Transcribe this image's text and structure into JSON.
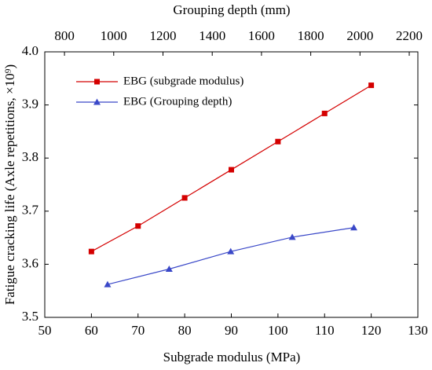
{
  "chart_data": {
    "type": "line",
    "xlabel": "Subgrade modulus (MPa)",
    "x2label": "Grouping depth (mm)",
    "ylabel": "Fatigue cracking life (Axle repetitions, ×10⁹)",
    "xlim": [
      50,
      130
    ],
    "xticks": [
      50,
      60,
      70,
      80,
      90,
      100,
      110,
      120,
      130
    ],
    "x2lim": [
      720,
      2235
    ],
    "x2ticks": [
      800,
      1000,
      1200,
      1400,
      1600,
      1800,
      2000,
      2200
    ],
    "ylim": [
      3.5,
      4.0
    ],
    "yticks": [
      3.5,
      3.6,
      3.7,
      3.8,
      3.9,
      {
        "value": 4.0,
        "label": "4.0"
      }
    ],
    "legend": "upper left",
    "series": [
      {
        "name": "EBG (subgrade modulus)",
        "color": "#d40000",
        "marker": "square",
        "axis": "x",
        "x": [
          60,
          70,
          80,
          90,
          100,
          110,
          120
        ],
        "values": [
          3.624,
          3.672,
          3.725,
          3.778,
          3.831,
          3.884,
          3.937
        ]
      },
      {
        "name": "EBG (Grouping depth)",
        "color": "#3a48c8",
        "marker": "triangle",
        "axis": "x2",
        "x": [
          975,
          1225,
          1475,
          1725,
          1975
        ],
        "values": [
          3.562,
          3.591,
          3.624,
          3.651,
          3.669
        ]
      }
    ]
  }
}
